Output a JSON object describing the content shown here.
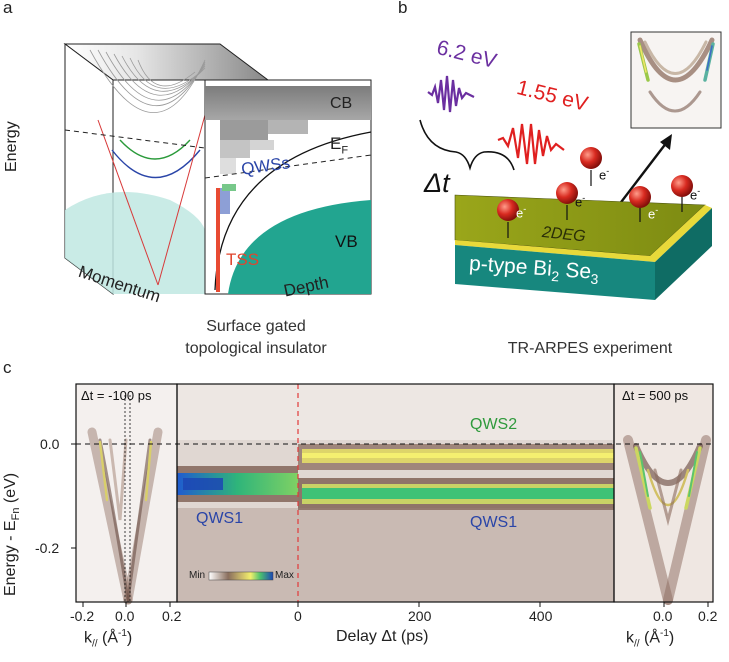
{
  "panel_a": {
    "letter": "a",
    "energy_axis": "Energy",
    "momentum_axis": "Momentum",
    "depth_axis": "Depth",
    "band_cb": "CB",
    "band_ef_main": "E",
    "band_ef_sub": "F",
    "band_qws": "QWSs",
    "band_tss": "TSS",
    "band_vb": "VB",
    "caption_line1": "Surface gated",
    "caption_line2": "topological insulator"
  },
  "panel_b": {
    "letter": "b",
    "photon1": "6.2 eV",
    "photon2": "1.55 eV",
    "delay": "Δt",
    "electron": "e",
    "electron_sup": "-",
    "layer_2deg": "2DEG",
    "material_main": "p-type Bi",
    "material_sub1": "2",
    "material_mid": " Se",
    "material_sub2": "3",
    "caption": "TR-ARPES experiment",
    "colors": {
      "photon1": "#6b2fa0",
      "photon2": "#e02020",
      "slab_top": "#8a9a16",
      "slab_side": "#17877e",
      "electron": "#c81e1e"
    }
  },
  "panel_c": {
    "letter": "c",
    "left_title": "Δt = -100 ps",
    "right_title": "Δt = 500 ps",
    "ylabel_main": "Energy - E",
    "ylabel_sub": "Fn",
    "ylabel_unit": " (eV)",
    "yticks": [
      "0.0",
      "-0.2"
    ],
    "left_xticks": [
      "-0.2",
      "0.0",
      "0.2"
    ],
    "mid_xticks": [
      "0",
      "200",
      "400"
    ],
    "right_xticks": [
      "0.0",
      "0.2"
    ],
    "klabel_main": "k",
    "klabel_sub": "//",
    "klabel_unit": " (Å",
    "klabel_sup": "-1",
    "klabel_close": ")",
    "delay_label": "Delay Δt (ps)",
    "qws2": "QWS2",
    "qws1_left": "QWS1",
    "qws1_right": "QWS1",
    "cbar_min": "Min",
    "cbar_max": "Max"
  },
  "chart_data": {
    "type": "heatmap",
    "xlabel": "Delay Δt (ps)",
    "ylabel": "Energy - EFn (eV)",
    "x_ticks": [
      0,
      200,
      400
    ],
    "y_ticks": [
      0.0,
      -0.2
    ],
    "xlim": [
      -200,
      520
    ],
    "ylim": [
      -0.31,
      0.11
    ],
    "bands": [
      {
        "name": "QWS1",
        "delay_range": [
          -200,
          0
        ],
        "energy": -0.082
      },
      {
        "name": "QWS2",
        "delay_range": [
          0,
          520
        ],
        "energy": -0.022
      },
      {
        "name": "QWS1",
        "delay_range": [
          0,
          520
        ],
        "energy": -0.1
      }
    ]
  }
}
